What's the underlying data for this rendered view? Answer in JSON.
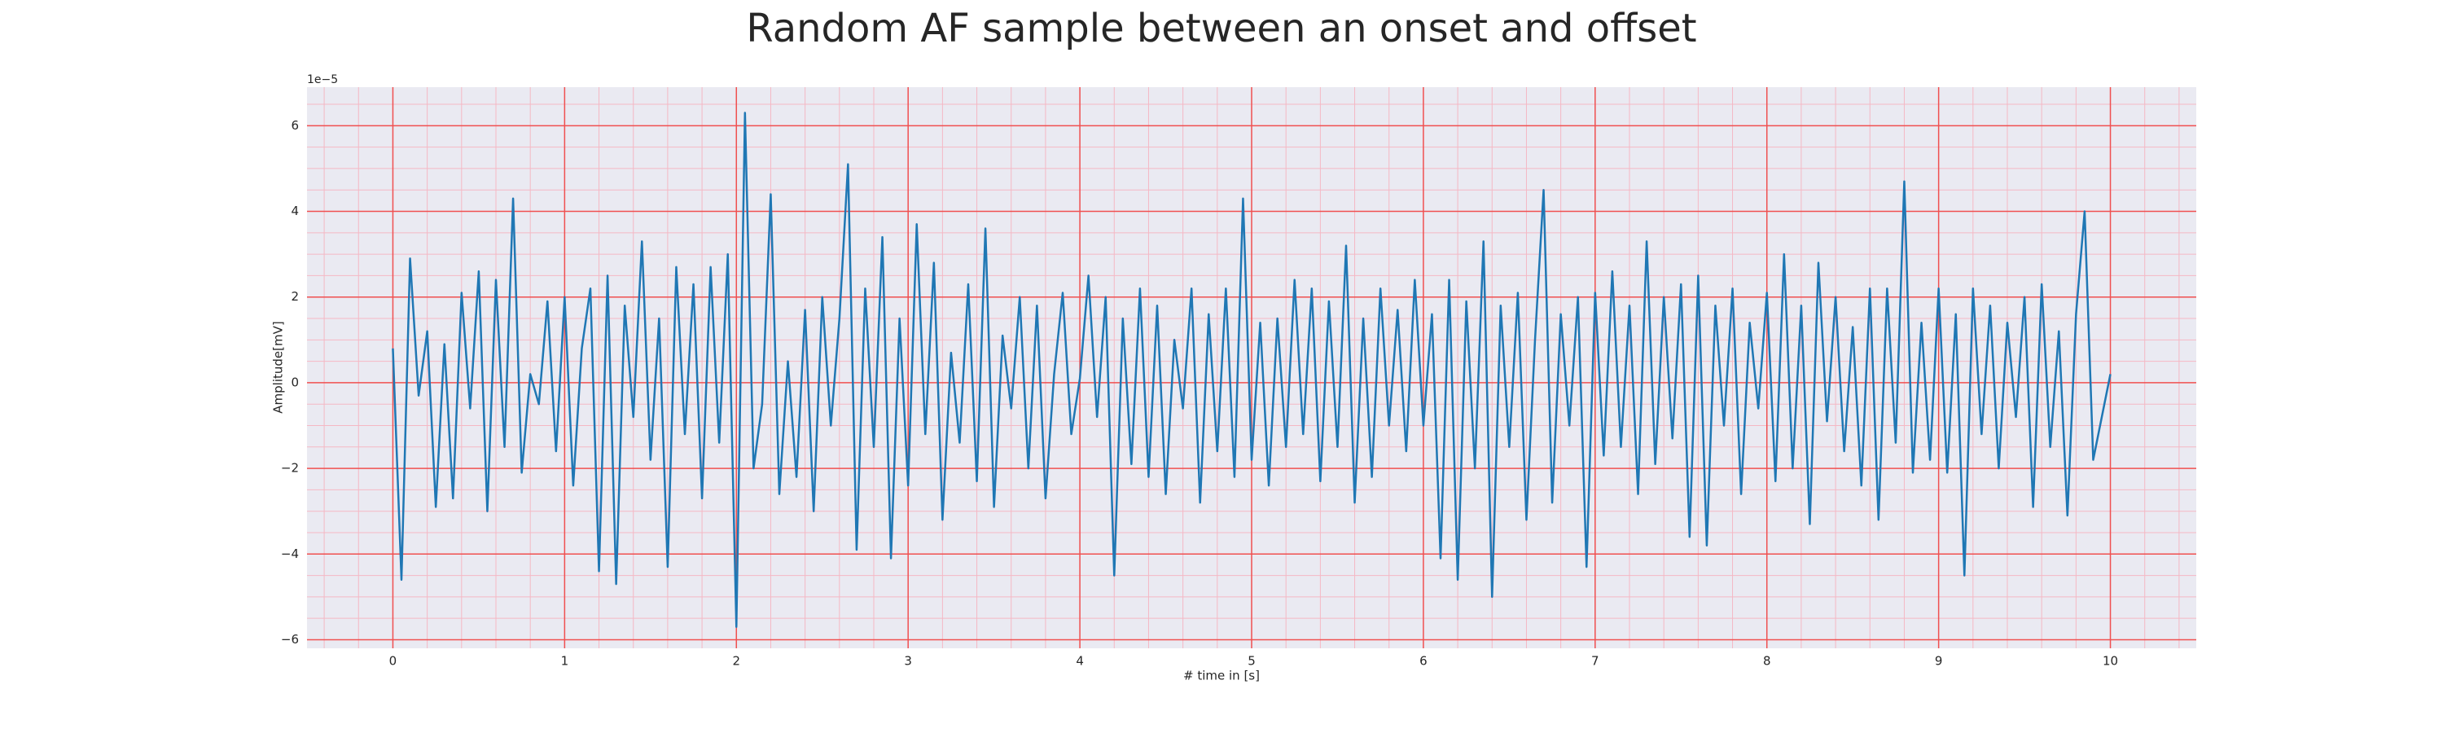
{
  "chart_data": {
    "type": "line",
    "title": "Random AF sample between an onset and offset",
    "xlabel": "# time in [s]",
    "ylabel": "Amplitude[mV]",
    "y_offset_text": "1e−5",
    "color": "#1f77b4",
    "background": "#eaeaf2",
    "grid": true,
    "major_grid_color": "#f05050",
    "minor_grid_color": "#f5b8c4",
    "xlim": [
      -0.5,
      10.5
    ],
    "ylim": [
      -6.2,
      6.9
    ],
    "xticks": [
      0,
      1,
      2,
      3,
      4,
      5,
      6,
      7,
      8,
      9,
      10
    ],
    "yticks": [
      {
        "value": -6,
        "label": "−6"
      },
      {
        "value": -4,
        "label": "−4"
      },
      {
        "value": -2,
        "label": "−2"
      },
      0,
      2,
      4,
      6
    ],
    "xminorticks": [
      -0.4,
      -0.2,
      0.2,
      0.4,
      0.6,
      0.8,
      1.2,
      1.4,
      1.6,
      1.8,
      2.2,
      2.4,
      2.6,
      2.8,
      3.2,
      3.4,
      3.6,
      3.8,
      4.2,
      4.4,
      4.6,
      4.8,
      5.2,
      5.4,
      5.6,
      5.8,
      6.2,
      6.4,
      6.6,
      6.8,
      7.2,
      7.4,
      7.6,
      7.8,
      8.2,
      8.4,
      8.6,
      8.8,
      9.2,
      9.4,
      9.6,
      9.8,
      10.2,
      10.4
    ],
    "yminorticks": [
      -5.5,
      -5,
      -4.5,
      -3.5,
      -3,
      -2.5,
      -1.5,
      -1,
      -0.5,
      0.5,
      1,
      1.5,
      2.5,
      3,
      3.5,
      4.5,
      5,
      5.5,
      6.5
    ],
    "x": [
      0,
      0.05,
      0.1,
      0.15,
      0.2,
      0.25,
      0.3,
      0.35,
      0.4,
      0.45,
      0.5,
      0.55,
      0.6,
      0.65,
      0.7,
      0.75,
      0.8,
      0.85,
      0.9,
      0.95,
      1,
      1.05,
      1.1,
      1.15,
      1.2,
      1.25,
      1.3,
      1.35,
      1.4,
      1.45,
      1.5,
      1.55,
      1.6,
      1.65,
      1.7,
      1.75,
      1.8,
      1.85,
      1.9,
      1.95,
      2,
      2.05,
      2.1,
      2.15,
      2.2,
      2.25,
      2.3,
      2.35,
      2.4,
      2.45,
      2.5,
      2.55,
      2.6,
      2.65,
      2.7,
      2.75,
      2.8,
      2.85,
      2.9,
      2.95,
      3,
      3.05,
      3.1,
      3.15,
      3.2,
      3.25,
      3.3,
      3.35,
      3.4,
      3.45,
      3.5,
      3.55,
      3.6,
      3.65,
      3.7,
      3.75,
      3.8,
      3.85,
      3.9,
      3.95,
      4,
      4.05,
      4.1,
      4.15,
      4.2,
      4.25,
      4.3,
      4.35,
      4.4,
      4.45,
      4.5,
      4.55,
      4.6,
      4.65,
      4.7,
      4.75,
      4.8,
      4.85,
      4.9,
      4.95,
      5,
      5.05,
      5.1,
      5.15,
      5.2,
      5.25,
      5.3,
      5.35,
      5.4,
      5.45,
      5.5,
      5.55,
      5.6,
      5.65,
      5.7,
      5.75,
      5.8,
      5.85,
      5.9,
      5.95,
      6,
      6.05,
      6.1,
      6.15,
      6.2,
      6.25,
      6.3,
      6.35,
      6.4,
      6.45,
      6.5,
      6.55,
      6.6,
      6.65,
      6.7,
      6.75,
      6.8,
      6.85,
      6.9,
      6.95,
      7,
      7.05,
      7.1,
      7.15,
      7.2,
      7.25,
      7.3,
      7.35,
      7.4,
      7.45,
      7.5,
      7.55,
      7.6,
      7.65,
      7.7,
      7.75,
      7.8,
      7.85,
      7.9,
      7.95,
      8,
      8.05,
      8.1,
      8.15,
      8.2,
      8.25,
      8.3,
      8.35,
      8.4,
      8.45,
      8.5,
      8.55,
      8.6,
      8.65,
      8.7,
      8.75,
      8.8,
      8.85,
      8.9,
      8.95,
      9,
      9.05,
      9.1,
      9.15,
      9.2,
      9.25,
      9.3,
      9.35,
      9.4,
      9.45,
      9.5,
      9.55,
      9.6,
      9.65,
      9.7,
      9.75,
      9.8,
      9.85,
      9.9,
      9.95,
      10
    ],
    "values": [
      0.8,
      -4.6,
      2.9,
      -0.3,
      1.2,
      -2.9,
      0.9,
      -2.7,
      2.1,
      -0.6,
      2.6,
      -3.0,
      2.4,
      -1.5,
      4.3,
      -2.1,
      0.2,
      -0.5,
      1.9,
      -1.6,
      2.0,
      -2.4,
      0.8,
      2.2,
      -4.4,
      2.5,
      -4.7,
      1.8,
      -0.8,
      3.3,
      -1.8,
      1.5,
      -4.3,
      2.7,
      -1.2,
      2.3,
      -2.7,
      2.7,
      -1.4,
      3.0,
      -5.7,
      6.3,
      -2.0,
      -0.5,
      4.4,
      -2.6,
      0.5,
      -2.2,
      1.7,
      -3.0,
      2.0,
      -1.0,
      1.5,
      5.1,
      -3.9,
      2.2,
      -1.5,
      3.4,
      -4.1,
      1.5,
      -2.4,
      3.7,
      -1.2,
      2.8,
      -3.2,
      0.7,
      -1.4,
      2.3,
      -2.3,
      3.6,
      -2.9,
      1.1,
      -0.6,
      2.0,
      -2.0,
      1.8,
      -2.7,
      0.2,
      2.1,
      -1.2,
      0.1,
      2.5,
      -0.8,
      2.0,
      -4.5,
      1.5,
      -1.9,
      2.2,
      -2.2,
      1.8,
      -2.6,
      1.0,
      -0.6,
      2.2,
      -2.8,
      1.6,
      -1.6,
      2.2,
      -2.2,
      4.3,
      -1.8,
      1.4,
      -2.4,
      1.5,
      -1.5,
      2.4,
      -1.2,
      2.2,
      -2.3,
      1.9,
      -1.5,
      3.2,
      -2.8,
      1.5,
      -2.2,
      2.2,
      -1.0,
      1.7,
      -1.6,
      2.4,
      -1.0,
      1.6,
      -4.1,
      2.4,
      -4.6,
      1.9,
      -2.0,
      3.3,
      -5.0,
      1.8,
      -1.5,
      2.1,
      -3.2,
      1.0,
      4.5,
      -2.8,
      1.6,
      -1.0,
      2.0,
      -4.3,
      2.1,
      -1.7,
      2.6,
      -1.5,
      1.8,
      -2.6,
      3.3,
      -1.9,
      2.0,
      -1.3,
      2.3,
      -3.6,
      2.5,
      -3.8,
      1.8,
      -1.0,
      2.2,
      -2.6,
      1.4,
      -0.6,
      2.1,
      -2.3,
      3.0,
      -2.0,
      1.8,
      -3.3,
      2.8,
      -0.9,
      2.0,
      -1.6,
      1.3,
      -2.4,
      2.2,
      -3.2,
      2.2,
      -1.4,
      4.7,
      -2.1,
      1.4,
      -1.8,
      2.2,
      -2.1,
      1.6,
      -4.5,
      2.2,
      -1.2,
      1.8,
      -2.0,
      1.4,
      -0.8,
      2.0,
      -2.9,
      2.3,
      -1.5,
      1.2,
      -3.1,
      1.6,
      4.0,
      -1.8,
      -0.8,
      0.2
    ]
  }
}
